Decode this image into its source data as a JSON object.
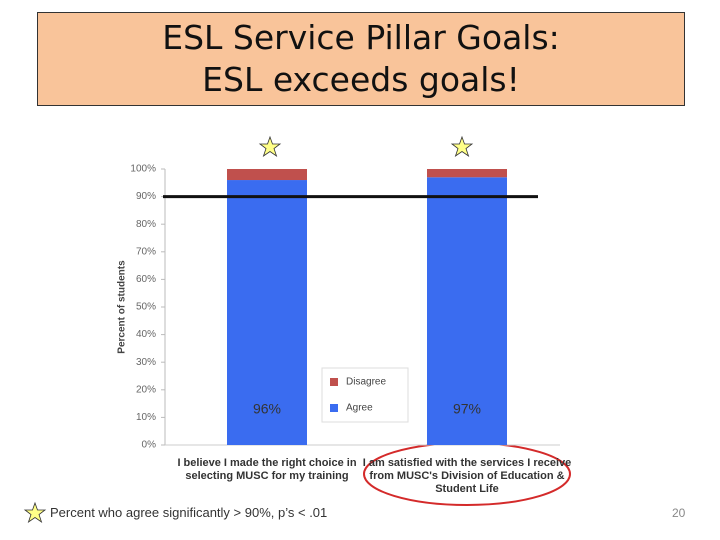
{
  "chart_data": {
    "type": "stacked_bar",
    "title": "ESL Service Pillar Goals: ESL exceeds goals!",
    "y_label": "Percent of students",
    "categories": [
      "I believe I made the right choice in selecting MUSC for my training",
      "I am satisfied with the services I receive from MUSC's Division of Education & Student Life"
    ],
    "series": [
      {
        "name": "Agree",
        "color": "#3a6cf0",
        "values": [
          96,
          97
        ],
        "value_labels": [
          "96%",
          "97%"
        ]
      },
      {
        "name": "Disagree",
        "color": "#c0504d",
        "values": [
          4,
          3
        ]
      }
    ],
    "goal_line": 90,
    "ylim": [
      0,
      100
    ],
    "yticks": [
      {
        "value": 0,
        "label": "0%"
      },
      {
        "value": 10,
        "label": "10%"
      },
      {
        "value": 20,
        "label": "20%"
      },
      {
        "value": 30,
        "label": "30%"
      },
      {
        "value": 40,
        "label": "40%"
      },
      {
        "value": 50,
        "label": "50%"
      },
      {
        "value": 60,
        "label": "60%"
      },
      {
        "value": 70,
        "label": "70%"
      },
      {
        "value": 80,
        "label": "80%"
      },
      {
        "value": 90,
        "label": "90%"
      },
      {
        "value": 100,
        "label": "100%"
      }
    ],
    "footnote": "Percent who agree significantly > 90%, p’s < .01",
    "page_number": "20"
  }
}
